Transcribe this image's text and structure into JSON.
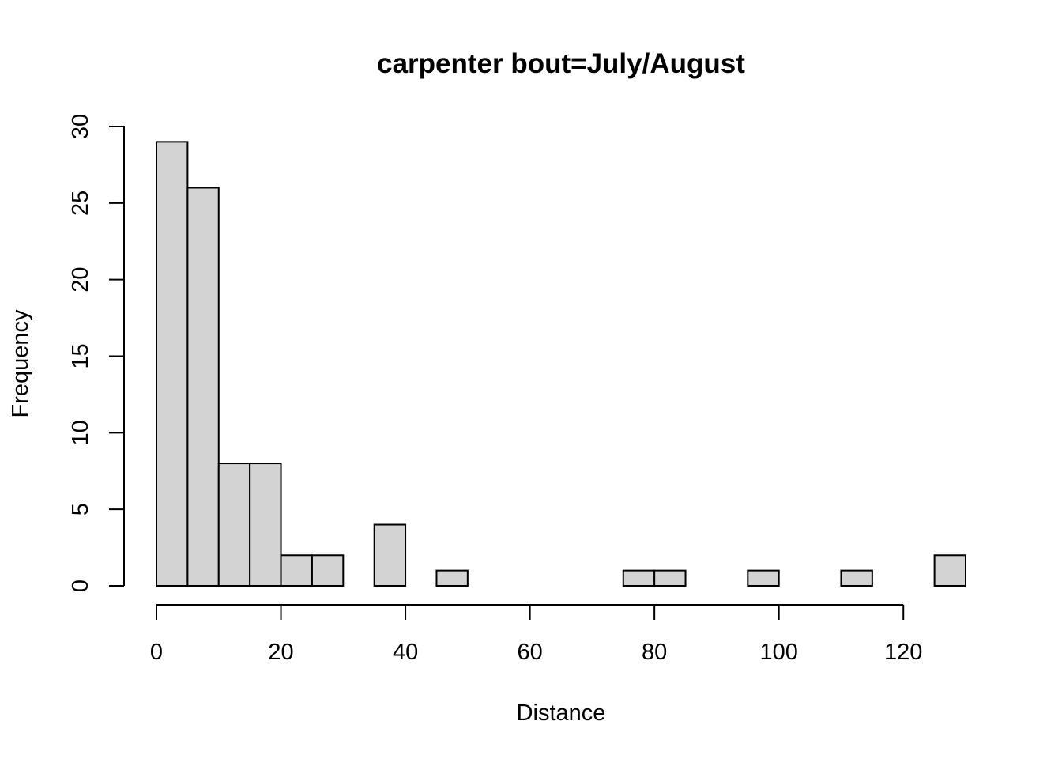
{
  "chart_data": {
    "type": "bar",
    "title": "carpenter  bout=July/August",
    "xlabel": "Distance",
    "ylabel": "Frequency",
    "bin_width": 5,
    "bins": [
      {
        "x0": 0,
        "x1": 5,
        "count": 29
      },
      {
        "x0": 5,
        "x1": 10,
        "count": 26
      },
      {
        "x0": 10,
        "x1": 15,
        "count": 8
      },
      {
        "x0": 15,
        "x1": 20,
        "count": 8
      },
      {
        "x0": 20,
        "x1": 25,
        "count": 2
      },
      {
        "x0": 25,
        "x1": 30,
        "count": 2
      },
      {
        "x0": 30,
        "x1": 35,
        "count": 0
      },
      {
        "x0": 35,
        "x1": 40,
        "count": 4
      },
      {
        "x0": 40,
        "x1": 45,
        "count": 0
      },
      {
        "x0": 45,
        "x1": 50,
        "count": 1
      },
      {
        "x0": 50,
        "x1": 55,
        "count": 0
      },
      {
        "x0": 55,
        "x1": 60,
        "count": 0
      },
      {
        "x0": 60,
        "x1": 65,
        "count": 0
      },
      {
        "x0": 65,
        "x1": 70,
        "count": 0
      },
      {
        "x0": 70,
        "x1": 75,
        "count": 0
      },
      {
        "x0": 75,
        "x1": 80,
        "count": 1
      },
      {
        "x0": 80,
        "x1": 85,
        "count": 1
      },
      {
        "x0": 85,
        "x1": 90,
        "count": 0
      },
      {
        "x0": 90,
        "x1": 95,
        "count": 0
      },
      {
        "x0": 95,
        "x1": 100,
        "count": 1
      },
      {
        "x0": 100,
        "x1": 105,
        "count": 0
      },
      {
        "x0": 105,
        "x1": 110,
        "count": 0
      },
      {
        "x0": 110,
        "x1": 115,
        "count": 1
      },
      {
        "x0": 115,
        "x1": 120,
        "count": 0
      },
      {
        "x0": 120,
        "x1": 125,
        "count": 0
      },
      {
        "x0": 125,
        "x1": 130,
        "count": 2
      }
    ],
    "xlim": [
      0,
      130
    ],
    "ylim": [
      0,
      30
    ],
    "x_ticks": [
      0,
      20,
      40,
      60,
      80,
      100,
      120
    ],
    "y_ticks": [
      0,
      5,
      10,
      15,
      20,
      25,
      30
    ],
    "x_tick_labels": [
      "0",
      "20",
      "40",
      "60",
      "80",
      "100",
      "120"
    ],
    "y_tick_labels": [
      "0",
      "5",
      "10",
      "15",
      "20",
      "25",
      "30"
    ],
    "grid": false,
    "bar_fill": "#d3d3d3",
    "bar_stroke": "#000000"
  }
}
